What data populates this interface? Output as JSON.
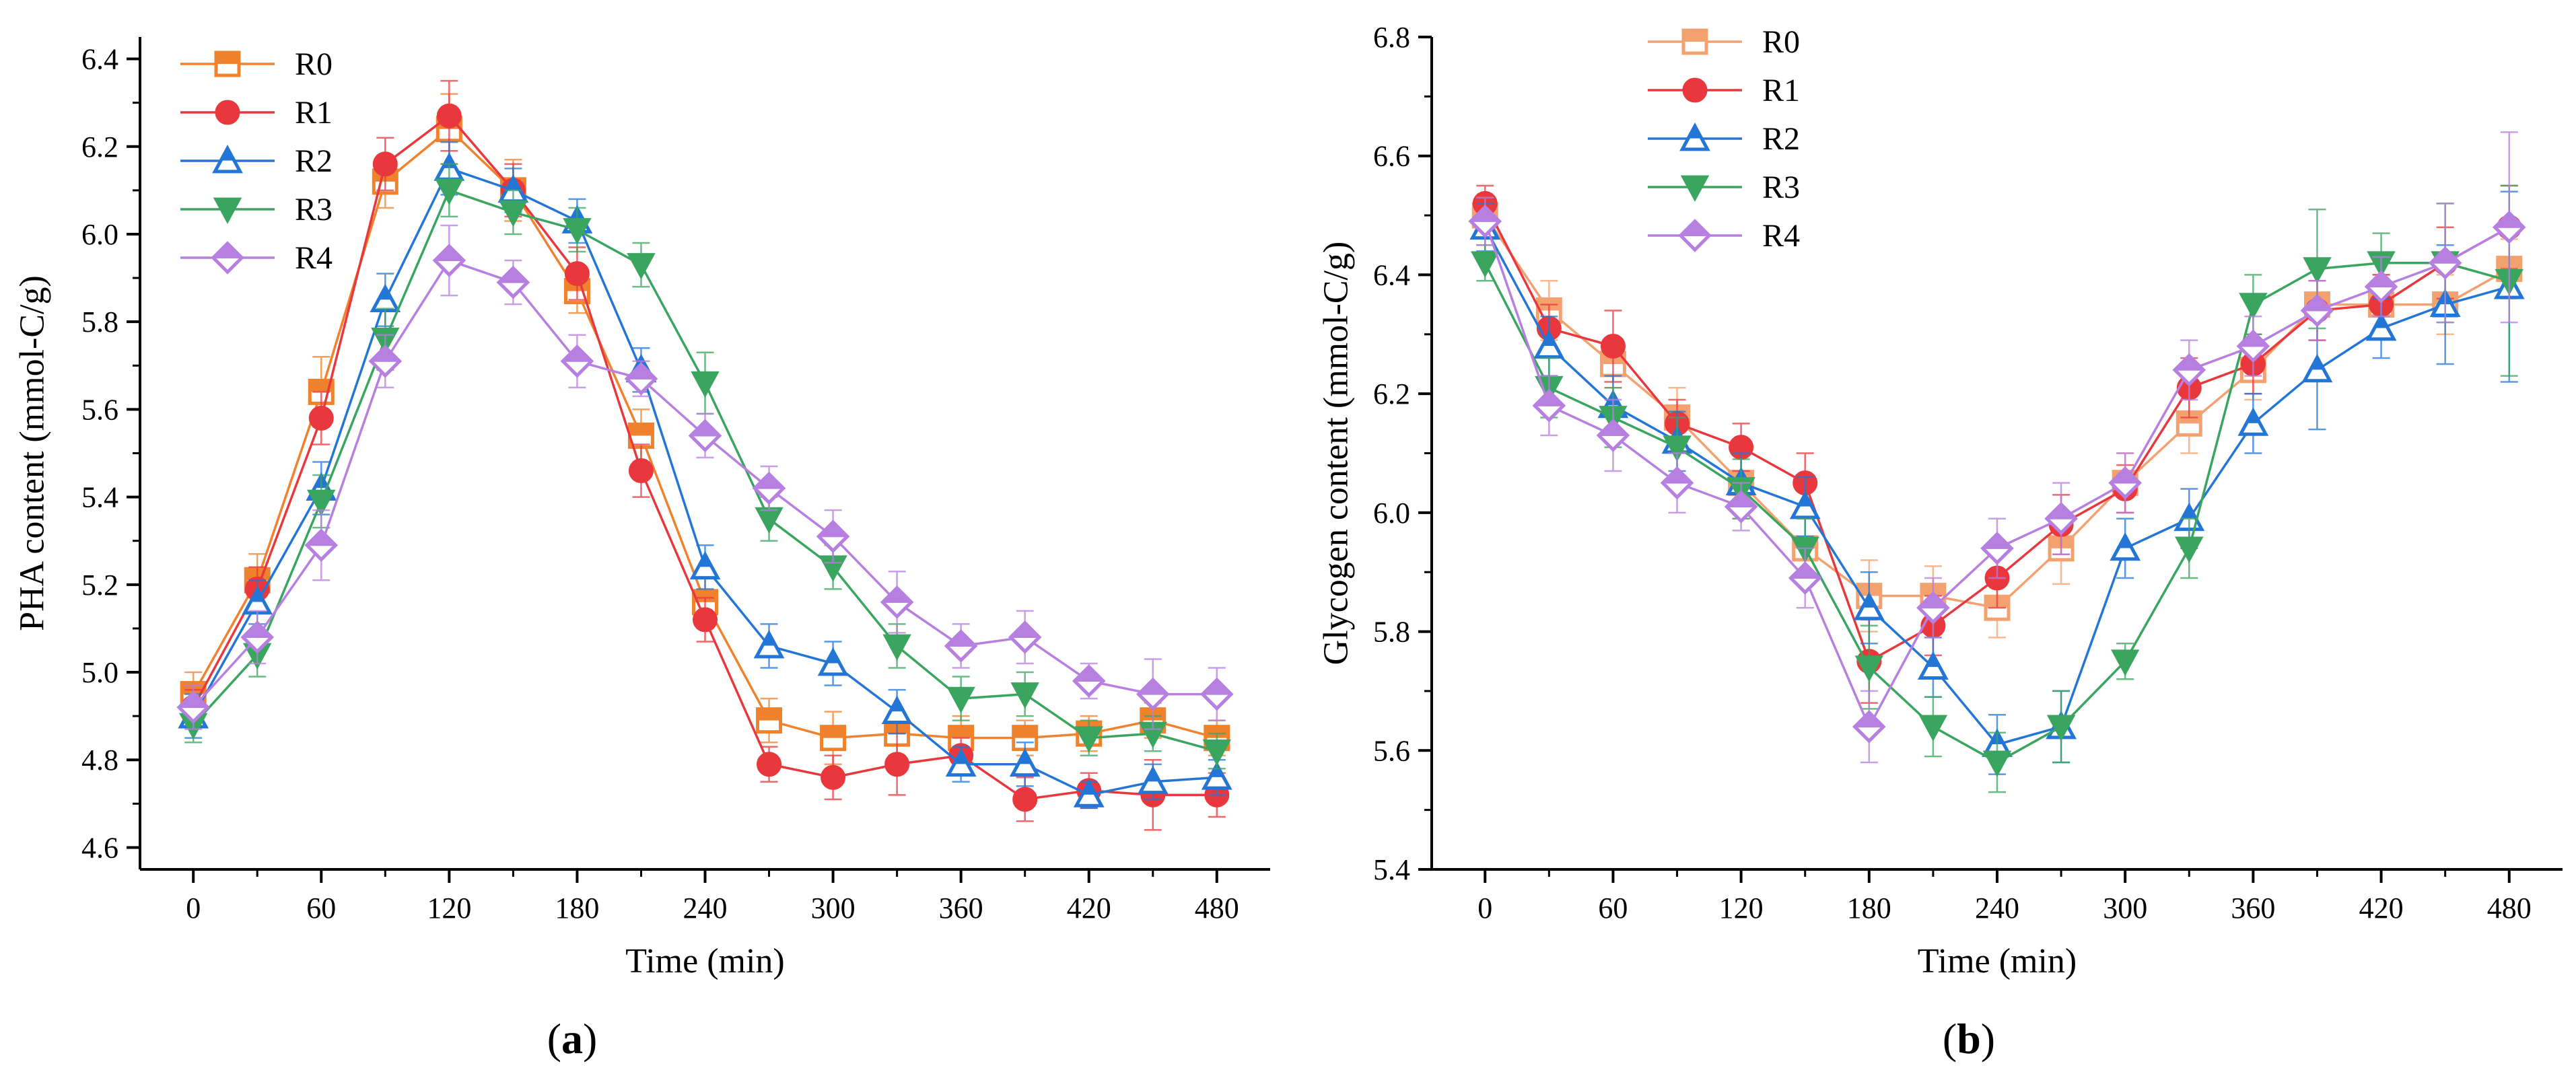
{
  "colors": {
    "R0": "#F0822D",
    "R1": "#E8383D",
    "R2": "#2476D6",
    "R3": "#3AA55F",
    "R4": "#B67FE0",
    "R0_b": "#F4A170"
  },
  "chart_data": [
    {
      "type": "line",
      "panel_label_parts": [
        "(",
        "a",
        ")"
      ],
      "xlabel": "Time (min)",
      "ylabel": "PHA content (mmol-C/g)",
      "xlim": [
        -25,
        505
      ],
      "ylim": [
        4.55,
        6.45
      ],
      "xticks": [
        0,
        60,
        120,
        180,
        240,
        300,
        360,
        420,
        480
      ],
      "xtick_labels": [
        "0",
        "60",
        "120",
        "180",
        "240",
        "300",
        "360",
        "420",
        "480"
      ],
      "yticks": [
        4.6,
        4.8,
        5.0,
        5.2,
        5.4,
        5.6,
        5.8,
        6.0,
        6.2,
        6.4
      ],
      "ytick_labels": [
        "4.6",
        "4.8",
        "5.0",
        "5.2",
        "5.4",
        "5.6",
        "5.8",
        "6.0",
        "6.2",
        "6.4"
      ],
      "legend_position": "top-left",
      "x": [
        0,
        30,
        60,
        90,
        120,
        150,
        180,
        210,
        240,
        270,
        300,
        330,
        360,
        390,
        420,
        450,
        480
      ],
      "series": [
        {
          "name": "R0",
          "marker": "square-half",
          "color_key": "R0",
          "values": [
            4.95,
            5.21,
            5.64,
            6.12,
            6.24,
            6.1,
            5.87,
            5.54,
            5.16,
            4.89,
            4.85,
            4.86,
            4.85,
            4.85,
            4.86,
            4.89,
            4.85
          ],
          "errors": [
            0.05,
            0.06,
            0.08,
            0.06,
            0.08,
            0.07,
            0.05,
            0.06,
            0.06,
            0.05,
            0.06,
            0.05,
            0.05,
            0.04,
            0.04,
            0.04,
            0.04
          ]
        },
        {
          "name": "R1",
          "marker": "circle",
          "color_key": "R1",
          "values": [
            4.92,
            5.19,
            5.58,
            6.16,
            6.27,
            6.1,
            5.91,
            5.46,
            5.12,
            4.79,
            4.76,
            4.79,
            4.81,
            4.71,
            4.73,
            4.72,
            4.72
          ],
          "errors": [
            0.04,
            0.05,
            0.06,
            0.06,
            0.08,
            0.06,
            0.06,
            0.06,
            0.05,
            0.04,
            0.05,
            0.07,
            0.04,
            0.05,
            0.04,
            0.08,
            0.05
          ]
        },
        {
          "name": "R2",
          "marker": "triangle-up-half",
          "color_key": "R2",
          "values": [
            4.9,
            5.16,
            5.42,
            5.85,
            6.15,
            6.1,
            6.03,
            5.69,
            5.24,
            5.06,
            5.02,
            4.91,
            4.79,
            4.79,
            4.72,
            4.75,
            4.76
          ],
          "errors": [
            0.05,
            0.05,
            0.06,
            0.06,
            0.06,
            0.05,
            0.05,
            0.05,
            0.05,
            0.05,
            0.05,
            0.05,
            0.04,
            0.05,
            0.03,
            0.04,
            0.04
          ]
        },
        {
          "name": "R3",
          "marker": "triangle-down",
          "color_key": "R3",
          "values": [
            4.88,
            5.04,
            5.39,
            5.76,
            6.1,
            6.05,
            6.01,
            5.93,
            5.66,
            5.35,
            5.24,
            5.06,
            4.94,
            4.95,
            4.85,
            4.86,
            4.82
          ],
          "errors": [
            0.04,
            0.05,
            0.06,
            0.07,
            0.06,
            0.05,
            0.05,
            0.05,
            0.07,
            0.05,
            0.05,
            0.05,
            0.05,
            0.05,
            0.04,
            0.04,
            0.04
          ]
        },
        {
          "name": "R4",
          "marker": "diamond-half",
          "color_key": "R4",
          "values": [
            4.92,
            5.08,
            5.29,
            5.71,
            5.94,
            5.89,
            5.71,
            5.67,
            5.54,
            5.42,
            5.31,
            5.16,
            5.06,
            5.08,
            4.98,
            4.95,
            4.95
          ],
          "errors": [
            0.05,
            0.06,
            0.08,
            0.06,
            0.08,
            0.05,
            0.06,
            0.04,
            0.05,
            0.05,
            0.06,
            0.07,
            0.05,
            0.06,
            0.04,
            0.08,
            0.06
          ]
        }
      ]
    },
    {
      "type": "line",
      "panel_label_parts": [
        "(",
        "b",
        ")"
      ],
      "xlabel": "Time (min)",
      "ylabel": "Glycogen content (mmol-C/g)",
      "xlim": [
        -25,
        505
      ],
      "ylim": [
        5.4,
        6.8
      ],
      "xticks": [
        0,
        60,
        120,
        180,
        240,
        300,
        360,
        420,
        480
      ],
      "xtick_labels": [
        "0",
        "60",
        "120",
        "180",
        "240",
        "300",
        "360",
        "420",
        "480"
      ],
      "yticks": [
        5.4,
        5.6,
        5.8,
        6.0,
        6.2,
        6.4,
        6.6,
        6.8
      ],
      "ytick_labels": [
        "5.4",
        "5.6",
        "5.8",
        "6.0",
        "6.2",
        "6.4",
        "6.6",
        "6.8"
      ],
      "legend_position": "top-center",
      "x": [
        0,
        30,
        60,
        90,
        120,
        150,
        180,
        210,
        240,
        270,
        300,
        330,
        360,
        390,
        420,
        450,
        480
      ],
      "series": [
        {
          "name": "R0",
          "marker": "square-half",
          "color_key": "R0_b",
          "values": [
            6.5,
            6.34,
            6.25,
            6.16,
            6.05,
            5.94,
            5.86,
            5.86,
            5.84,
            5.94,
            6.05,
            6.15,
            6.24,
            6.35,
            6.35,
            6.35,
            6.41
          ],
          "errors": [
            0.03,
            0.05,
            0.04,
            0.05,
            0.06,
            0.05,
            0.06,
            0.05,
            0.05,
            0.06,
            0.05,
            0.05,
            0.05,
            0.06,
            0.05,
            0.05,
            0.05
          ]
        },
        {
          "name": "R1",
          "marker": "circle",
          "color_key": "R1",
          "values": [
            6.52,
            6.31,
            6.28,
            6.15,
            6.11,
            6.05,
            5.75,
            5.81,
            5.89,
            5.98,
            6.04,
            6.21,
            6.25,
            6.34,
            6.35,
            6.42,
            6.48
          ],
          "errors": [
            0.03,
            0.04,
            0.06,
            0.04,
            0.04,
            0.05,
            0.07,
            0.05,
            0.05,
            0.05,
            0.04,
            0.05,
            0.05,
            0.05,
            0.05,
            0.06,
            0.07
          ]
        },
        {
          "name": "R2",
          "marker": "triangle-up-half",
          "color_key": "R2",
          "values": [
            6.48,
            6.28,
            6.18,
            6.12,
            6.05,
            6.01,
            5.84,
            5.74,
            5.61,
            5.64,
            5.94,
            5.99,
            6.15,
            6.24,
            6.31,
            6.35,
            6.38
          ],
          "errors": [
            0.04,
            0.05,
            0.05,
            0.05,
            0.05,
            0.05,
            0.06,
            0.05,
            0.05,
            0.06,
            0.05,
            0.05,
            0.05,
            0.1,
            0.05,
            0.1,
            0.16
          ]
        },
        {
          "name": "R3",
          "marker": "triangle-down",
          "color_key": "R3",
          "values": [
            6.42,
            6.21,
            6.16,
            6.11,
            6.04,
            5.94,
            5.74,
            5.64,
            5.58,
            5.64,
            5.75,
            5.94,
            6.35,
            6.41,
            6.42,
            6.42,
            6.39
          ],
          "errors": [
            0.03,
            0.05,
            0.05,
            0.05,
            0.05,
            0.05,
            0.07,
            0.05,
            0.05,
            0.06,
            0.03,
            0.05,
            0.05,
            0.1,
            0.05,
            0.1,
            0.16
          ]
        },
        {
          "name": "R4",
          "marker": "diamond-half",
          "color_key": "R4",
          "values": [
            6.49,
            6.18,
            6.13,
            6.05,
            6.01,
            5.89,
            5.64,
            5.84,
            5.94,
            5.99,
            6.05,
            6.24,
            6.28,
            6.34,
            6.38,
            6.42,
            6.48
          ],
          "errors": [
            0.04,
            0.05,
            0.06,
            0.05,
            0.04,
            0.05,
            0.06,
            0.05,
            0.05,
            0.06,
            0.05,
            0.05,
            0.05,
            0.05,
            0.05,
            0.1,
            0.16
          ]
        }
      ]
    }
  ]
}
